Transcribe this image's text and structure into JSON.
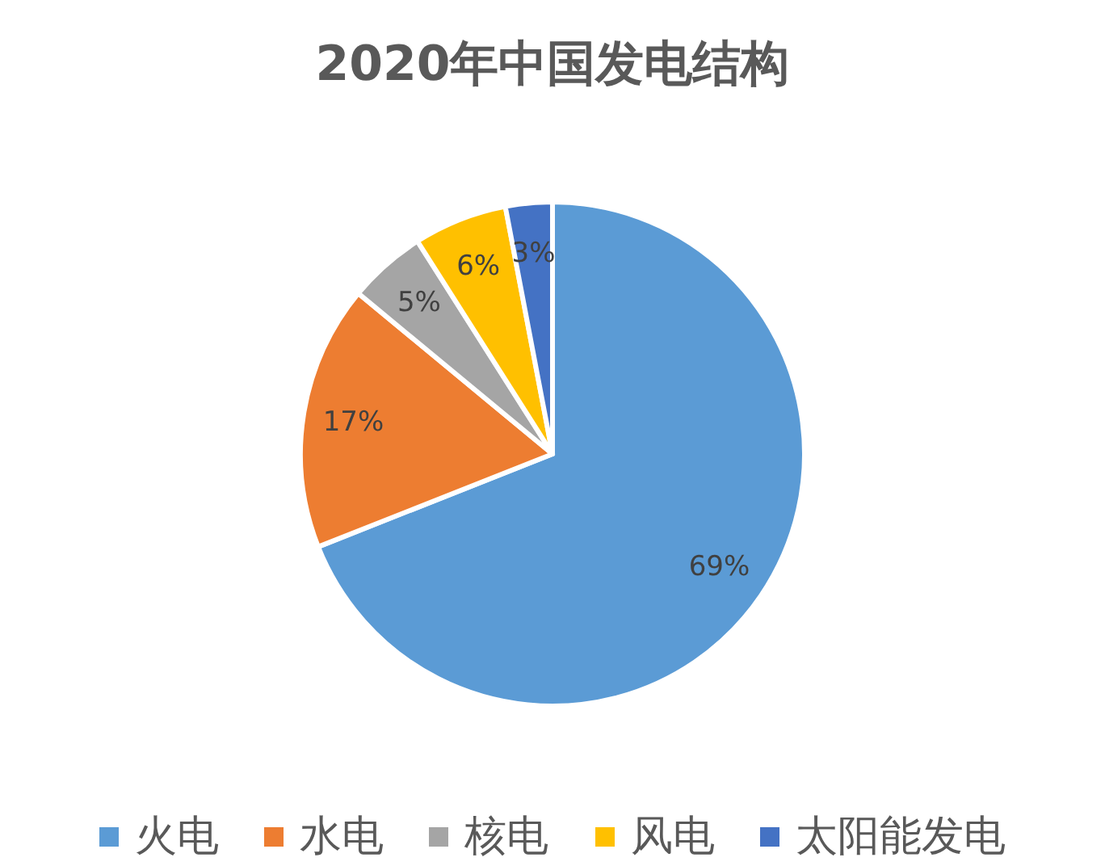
{
  "chart_data": {
    "type": "pie",
    "title": "2020年中国发电结构",
    "categories": [
      "火电",
      "水电",
      "核电",
      "风电",
      "太阳能发电"
    ],
    "values": [
      69,
      17,
      5,
      6,
      3
    ],
    "colors": [
      "#5b9bd5",
      "#ed7d31",
      "#a5a5a5",
      "#ffc000",
      "#4472c4"
    ],
    "value_labels": [
      "69%",
      "17%",
      "5%",
      "6%",
      "3%"
    ],
    "legend": "bottom"
  }
}
